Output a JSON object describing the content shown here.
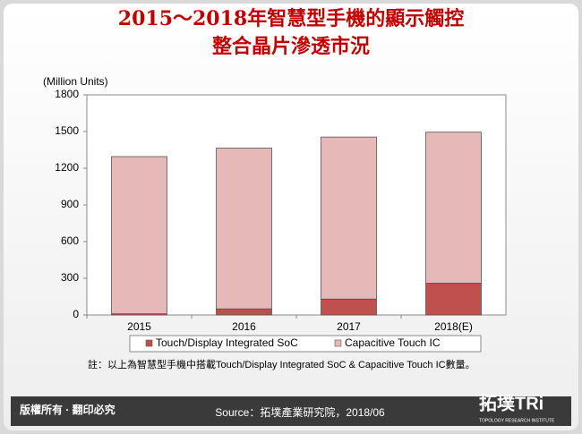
{
  "chart_data": {
    "type": "stacked_bar",
    "title": [
      "2015～2018年智慧型手機的顯示觸控",
      "整合晶片滲透市況"
    ],
    "y_label": "(Million Units)",
    "categories": [
      "2015",
      "2016",
      "2017",
      "2018(E)"
    ],
    "series": [
      {
        "name": "Touch/Display Integrated SoC",
        "color": "#c0504d",
        "values": [
          10,
          50,
          130,
          260
        ]
      },
      {
        "name": "Capacitive Touch IC",
        "color": "#e6b8b7",
        "values": [
          1285,
          1315,
          1325,
          1235
        ]
      }
    ],
    "ylim": [
      0,
      1800
    ],
    "yticks": [
      0,
      300,
      600,
      900,
      1200,
      1500,
      1800
    ],
    "grid": false,
    "legend": "bottom",
    "note": "註：以上為智慧型手機中搭載Touch/Display Integrated SoC & Capacitive Touch IC數量。"
  },
  "footer": {
    "rights": "版權所有 · 翻印必究",
    "source": "Source：拓墣產業研究院，2018/06",
    "logo": "拓墣TRi",
    "logo_sub": "TOPOLOGY RESEARCH INSTITUTE"
  }
}
